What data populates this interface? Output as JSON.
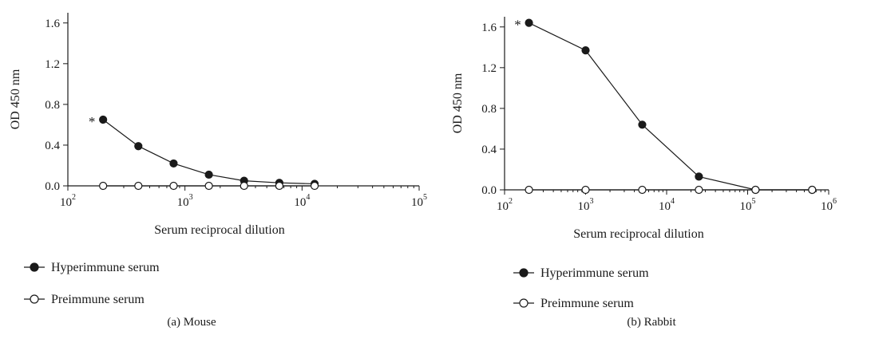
{
  "colors": {
    "axis": "#1a1a1a",
    "hyperimmune_marker": "#1a1a1a",
    "preimmune_marker": "#ffffff"
  },
  "chart_data": [
    {
      "type": "line",
      "caption": "(a) Mouse",
      "xlabel": "Serum reciprocal dilution",
      "ylabel": "OD 450 nm",
      "x_scale": "log",
      "xlim": [
        100,
        100000
      ],
      "ylim": [
        0,
        1.7
      ],
      "xticks": [
        {
          "base": "10",
          "exp": "2"
        },
        {
          "base": "10",
          "exp": "3"
        },
        {
          "base": "10",
          "exp": "4"
        },
        {
          "base": "10",
          "exp": "5"
        }
      ],
      "yticks": [
        "0.0",
        "0.4",
        "0.8",
        "1.2",
        "1.6"
      ],
      "grid": false,
      "legend_position": "below-left",
      "series": [
        {
          "name": "Hyperimmune serum",
          "marker": "filled-circle",
          "x": [
            200,
            400,
            800,
            1600,
            3200,
            6400,
            12800
          ],
          "y": [
            0.65,
            0.39,
            0.22,
            0.11,
            0.05,
            0.03,
            0.02
          ]
        },
        {
          "name": "Preimmune serum",
          "marker": "open-circle",
          "x": [
            200,
            400,
            800,
            1600,
            3200,
            6400,
            12800
          ],
          "y": [
            0.0,
            0.0,
            0.0,
            0.0,
            0.0,
            0.0,
            0.0
          ]
        }
      ],
      "annotations": [
        {
          "text": "*",
          "series": 0,
          "point": 0
        }
      ]
    },
    {
      "type": "line",
      "caption": "(b) Rabbit",
      "xlabel": "Serum reciprocal dilution",
      "ylabel": "OD 450 nm",
      "x_scale": "log",
      "xlim": [
        100,
        1000000
      ],
      "ylim": [
        0,
        1.7
      ],
      "xticks": [
        {
          "base": "10",
          "exp": "2"
        },
        {
          "base": "10",
          "exp": "3"
        },
        {
          "base": "10",
          "exp": "4"
        },
        {
          "base": "10",
          "exp": "5"
        },
        {
          "base": "10",
          "exp": "6"
        }
      ],
      "yticks": [
        "0.0",
        "0.4",
        "0.8",
        "1.2",
        "1.6"
      ],
      "grid": false,
      "legend_position": "below-left",
      "series": [
        {
          "name": "Hyperimmune serum",
          "marker": "filled-circle",
          "x": [
            200,
            1000,
            5000,
            25000,
            125000,
            625000
          ],
          "y": [
            1.64,
            1.37,
            0.64,
            0.13,
            0.0,
            0.0
          ]
        },
        {
          "name": "Preimmune serum",
          "marker": "open-circle",
          "x": [
            200,
            1000,
            5000,
            25000,
            125000,
            625000
          ],
          "y": [
            0.0,
            0.0,
            0.0,
            0.0,
            0.0,
            0.0
          ]
        }
      ],
      "annotations": [
        {
          "text": "*",
          "series": 0,
          "point": 0
        }
      ]
    }
  ]
}
